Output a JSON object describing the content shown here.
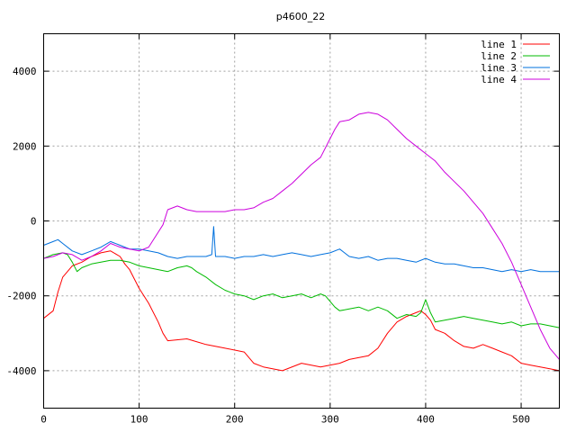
{
  "chart_data": {
    "type": "line",
    "title": "p4600_22",
    "xlabel": "",
    "ylabel": "",
    "xlim": [
      0,
      540
    ],
    "ylim": [
      -5000,
      5000
    ],
    "xticks": [
      0,
      100,
      200,
      300,
      400,
      500
    ],
    "yticks": [
      -4000,
      -2000,
      0,
      2000,
      4000
    ],
    "grid": true,
    "legend_position": "top-right",
    "series": [
      {
        "name": "line 1",
        "color": "#ff0000",
        "points": [
          [
            0,
            -2600
          ],
          [
            10,
            -2400
          ],
          [
            15,
            -1900
          ],
          [
            20,
            -1500
          ],
          [
            30,
            -1200
          ],
          [
            40,
            -1100
          ],
          [
            50,
            -950
          ],
          [
            60,
            -850
          ],
          [
            70,
            -800
          ],
          [
            80,
            -950
          ],
          [
            85,
            -1150
          ],
          [
            90,
            -1300
          ],
          [
            100,
            -1800
          ],
          [
            110,
            -2200
          ],
          [
            120,
            -2700
          ],
          [
            125,
            -3000
          ],
          [
            130,
            -3200
          ],
          [
            150,
            -3150
          ],
          [
            170,
            -3300
          ],
          [
            190,
            -3400
          ],
          [
            210,
            -3500
          ],
          [
            220,
            -3800
          ],
          [
            230,
            -3900
          ],
          [
            250,
            -4000
          ],
          [
            270,
            -3800
          ],
          [
            290,
            -3900
          ],
          [
            310,
            -3800
          ],
          [
            320,
            -3700
          ],
          [
            340,
            -3600
          ],
          [
            350,
            -3400
          ],
          [
            360,
            -3000
          ],
          [
            370,
            -2700
          ],
          [
            380,
            -2550
          ],
          [
            390,
            -2450
          ],
          [
            395,
            -2400
          ],
          [
            400,
            -2500
          ],
          [
            405,
            -2650
          ],
          [
            410,
            -2900
          ],
          [
            420,
            -3000
          ],
          [
            430,
            -3200
          ],
          [
            440,
            -3350
          ],
          [
            450,
            -3400
          ],
          [
            460,
            -3300
          ],
          [
            470,
            -3400
          ],
          [
            480,
            -3500
          ],
          [
            490,
            -3600
          ],
          [
            500,
            -3800
          ],
          [
            510,
            -3850
          ],
          [
            520,
            -3900
          ],
          [
            530,
            -3950
          ],
          [
            540,
            -4000
          ]
        ]
      },
      {
        "name": "line 2",
        "color": "#00bb00",
        "points": [
          [
            0,
            -1000
          ],
          [
            10,
            -900
          ],
          [
            20,
            -850
          ],
          [
            25,
            -900
          ],
          [
            30,
            -1100
          ],
          [
            35,
            -1350
          ],
          [
            40,
            -1250
          ],
          [
            50,
            -1150
          ],
          [
            60,
            -1100
          ],
          [
            70,
            -1050
          ],
          [
            80,
            -1050
          ],
          [
            90,
            -1100
          ],
          [
            100,
            -1200
          ],
          [
            110,
            -1250
          ],
          [
            120,
            -1300
          ],
          [
            130,
            -1350
          ],
          [
            140,
            -1250
          ],
          [
            150,
            -1200
          ],
          [
            155,
            -1250
          ],
          [
            160,
            -1350
          ],
          [
            170,
            -1500
          ],
          [
            180,
            -1700
          ],
          [
            190,
            -1850
          ],
          [
            200,
            -1950
          ],
          [
            210,
            -2000
          ],
          [
            220,
            -2100
          ],
          [
            230,
            -2000
          ],
          [
            240,
            -1950
          ],
          [
            250,
            -2050
          ],
          [
            260,
            -2000
          ],
          [
            270,
            -1950
          ],
          [
            280,
            -2050
          ],
          [
            290,
            -1950
          ],
          [
            295,
            -2000
          ],
          [
            300,
            -2150
          ],
          [
            305,
            -2300
          ],
          [
            310,
            -2400
          ],
          [
            320,
            -2350
          ],
          [
            330,
            -2300
          ],
          [
            340,
            -2400
          ],
          [
            350,
            -2300
          ],
          [
            360,
            -2400
          ],
          [
            370,
            -2600
          ],
          [
            380,
            -2500
          ],
          [
            390,
            -2550
          ],
          [
            395,
            -2450
          ],
          [
            400,
            -2100
          ],
          [
            405,
            -2450
          ],
          [
            410,
            -2700
          ],
          [
            420,
            -2650
          ],
          [
            430,
            -2600
          ],
          [
            440,
            -2550
          ],
          [
            450,
            -2600
          ],
          [
            460,
            -2650
          ],
          [
            470,
            -2700
          ],
          [
            480,
            -2750
          ],
          [
            490,
            -2700
          ],
          [
            500,
            -2800
          ],
          [
            510,
            -2750
          ],
          [
            520,
            -2750
          ],
          [
            530,
            -2800
          ],
          [
            540,
            -2850
          ]
        ]
      },
      {
        "name": "line 3",
        "color": "#0070dd",
        "points": [
          [
            0,
            -650
          ],
          [
            10,
            -550
          ],
          [
            15,
            -500
          ],
          [
            20,
            -600
          ],
          [
            30,
            -800
          ],
          [
            40,
            -900
          ],
          [
            50,
            -800
          ],
          [
            60,
            -700
          ],
          [
            70,
            -550
          ],
          [
            80,
            -650
          ],
          [
            90,
            -750
          ],
          [
            100,
            -750
          ],
          [
            110,
            -800
          ],
          [
            120,
            -850
          ],
          [
            130,
            -950
          ],
          [
            140,
            -1000
          ],
          [
            150,
            -950
          ],
          [
            160,
            -950
          ],
          [
            170,
            -950
          ],
          [
            176,
            -900
          ],
          [
            178,
            -150
          ],
          [
            180,
            -950
          ],
          [
            190,
            -950
          ],
          [
            200,
            -1000
          ],
          [
            210,
            -950
          ],
          [
            220,
            -950
          ],
          [
            230,
            -900
          ],
          [
            240,
            -950
          ],
          [
            250,
            -900
          ],
          [
            260,
            -850
          ],
          [
            270,
            -900
          ],
          [
            280,
            -950
          ],
          [
            290,
            -900
          ],
          [
            300,
            -850
          ],
          [
            310,
            -750
          ],
          [
            320,
            -950
          ],
          [
            330,
            -1000
          ],
          [
            340,
            -950
          ],
          [
            350,
            -1050
          ],
          [
            360,
            -1000
          ],
          [
            370,
            -1000
          ],
          [
            380,
            -1050
          ],
          [
            390,
            -1100
          ],
          [
            400,
            -1000
          ],
          [
            410,
            -1100
          ],
          [
            420,
            -1150
          ],
          [
            430,
            -1150
          ],
          [
            440,
            -1200
          ],
          [
            450,
            -1250
          ],
          [
            460,
            -1250
          ],
          [
            470,
            -1300
          ],
          [
            480,
            -1350
          ],
          [
            490,
            -1300
          ],
          [
            500,
            -1350
          ],
          [
            510,
            -1300
          ],
          [
            520,
            -1350
          ],
          [
            530,
            -1350
          ],
          [
            540,
            -1350
          ]
        ]
      },
      {
        "name": "line 4",
        "color": "#cc00dd",
        "points": [
          [
            0,
            -1000
          ],
          [
            10,
            -950
          ],
          [
            20,
            -850
          ],
          [
            30,
            -900
          ],
          [
            40,
            -1050
          ],
          [
            50,
            -950
          ],
          [
            60,
            -800
          ],
          [
            70,
            -600
          ],
          [
            80,
            -700
          ],
          [
            90,
            -750
          ],
          [
            100,
            -800
          ],
          [
            110,
            -700
          ],
          [
            120,
            -300
          ],
          [
            125,
            -100
          ],
          [
            130,
            300
          ],
          [
            140,
            400
          ],
          [
            150,
            300
          ],
          [
            160,
            250
          ],
          [
            170,
            250
          ],
          [
            180,
            250
          ],
          [
            190,
            250
          ],
          [
            200,
            300
          ],
          [
            210,
            300
          ],
          [
            220,
            350
          ],
          [
            230,
            500
          ],
          [
            240,
            600
          ],
          [
            250,
            800
          ],
          [
            260,
            1000
          ],
          [
            270,
            1250
          ],
          [
            280,
            1500
          ],
          [
            290,
            1700
          ],
          [
            300,
            2200
          ],
          [
            305,
            2450
          ],
          [
            310,
            2650
          ],
          [
            320,
            2700
          ],
          [
            330,
            2850
          ],
          [
            340,
            2900
          ],
          [
            350,
            2850
          ],
          [
            360,
            2700
          ],
          [
            370,
            2450
          ],
          [
            380,
            2200
          ],
          [
            390,
            2000
          ],
          [
            400,
            1800
          ],
          [
            410,
            1600
          ],
          [
            420,
            1300
          ],
          [
            430,
            1050
          ],
          [
            440,
            800
          ],
          [
            450,
            500
          ],
          [
            460,
            200
          ],
          [
            470,
            -200
          ],
          [
            480,
            -600
          ],
          [
            490,
            -1100
          ],
          [
            500,
            -1700
          ],
          [
            510,
            -2300
          ],
          [
            520,
            -2900
          ],
          [
            530,
            -3400
          ],
          [
            540,
            -3700
          ]
        ]
      }
    ]
  }
}
